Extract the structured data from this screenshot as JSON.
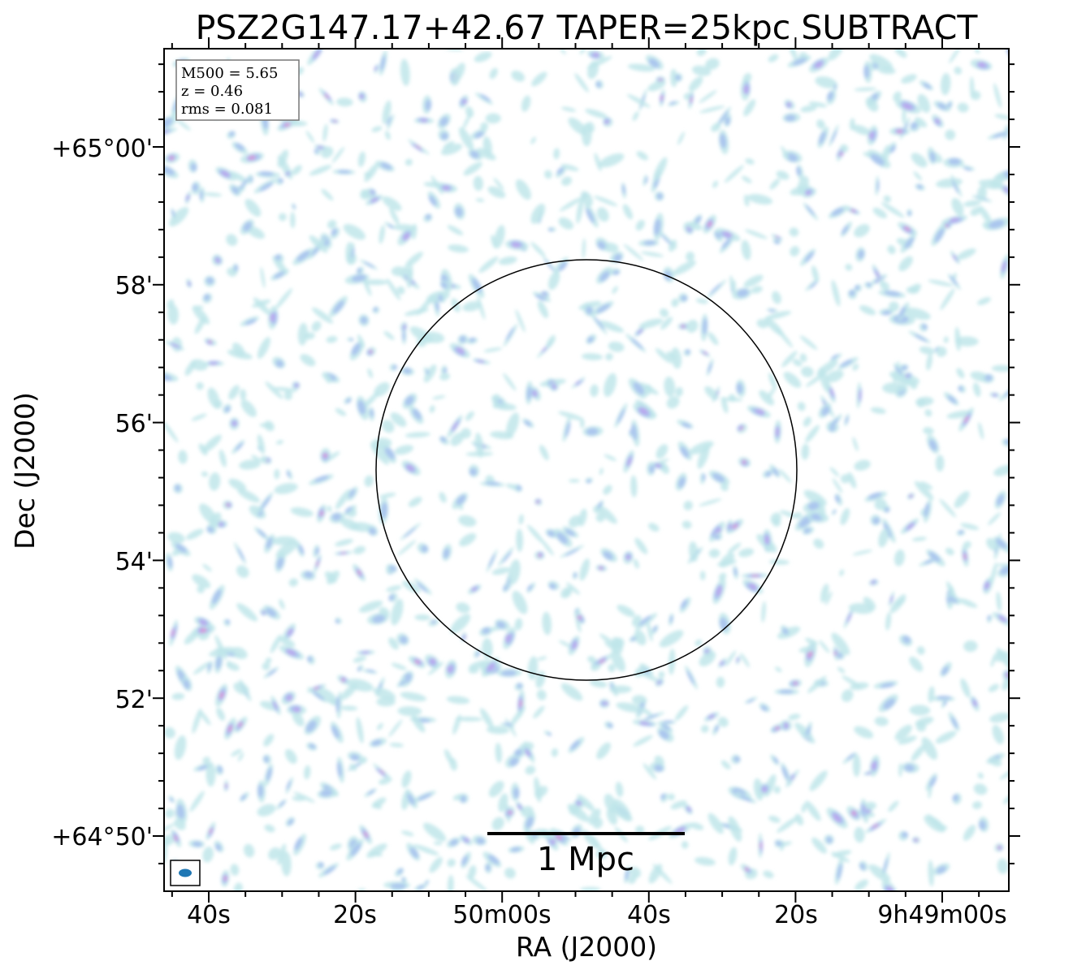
{
  "chart_data": {
    "type": "heatmap",
    "title": "PSZ2G147.17+42.67 TAPER=25kpc SUBTRACT",
    "xlabel": "RA (J2000)",
    "ylabel": "Dec (J2000)",
    "x_ticks": [
      "40s",
      "20s",
      "50m00s",
      "40s",
      "20s",
      "9h49m00s"
    ],
    "y_ticks": [
      "+65°00'",
      "58'",
      "56'",
      "54'",
      "52'",
      "+64°50'"
    ],
    "info_box": {
      "m500": "M500 = 5.65",
      "z": "z = 0.46",
      "rms": "rms = 0.081"
    },
    "scale_bar_label": "1 Mpc",
    "colormap": [
      "#bfe6ea",
      "#a9c3ee",
      "#b8a6ee",
      "#d79ad6"
    ],
    "beam_color": "#1f77b4",
    "grid": false
  }
}
